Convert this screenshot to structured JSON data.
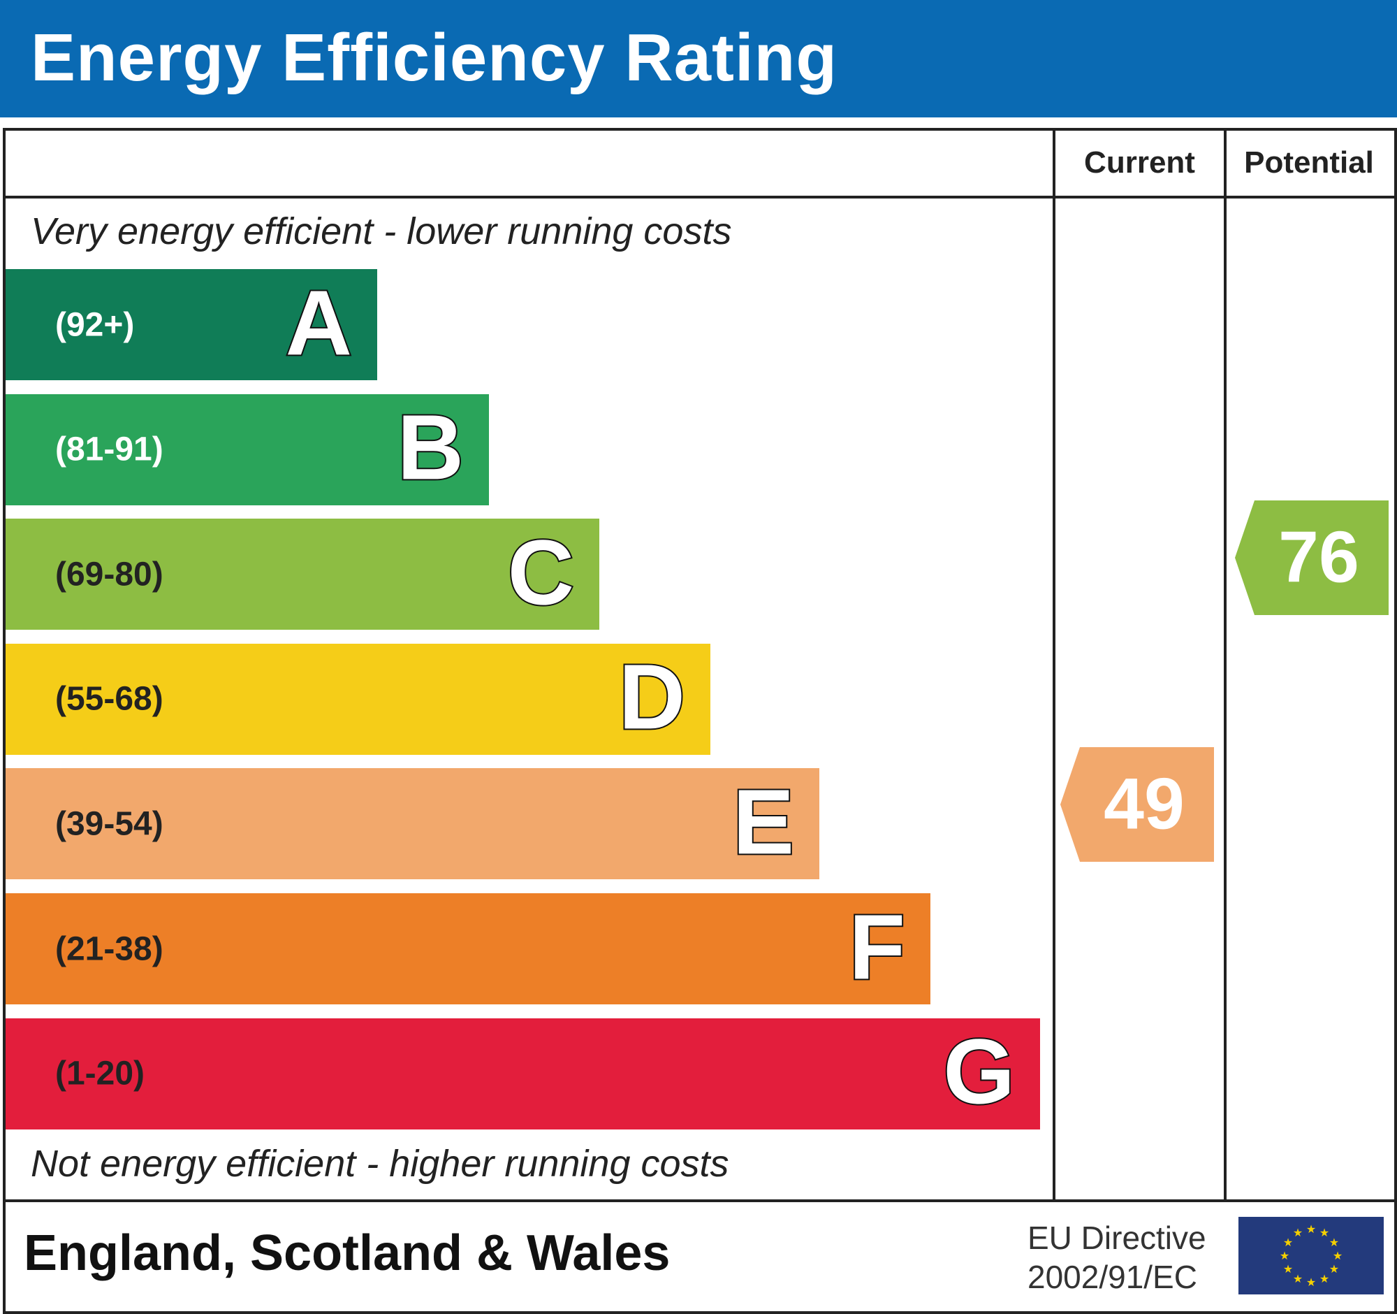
{
  "header": {
    "title": "Energy Efficiency Rating",
    "background_color": "#0a6ab3"
  },
  "columns": {
    "current": "Current",
    "potential": "Potential"
  },
  "notes": {
    "top": "Very energy efficient - lower running costs",
    "bottom": "Not energy efficient - higher running costs"
  },
  "bands": [
    {
      "letter": "A",
      "range": "(92+)",
      "color": "#107d57",
      "text_color": "#ffffff"
    },
    {
      "letter": "B",
      "range": "(81-91)",
      "color": "#2aa45a",
      "text_color": "#ffffff"
    },
    {
      "letter": "C",
      "range": "(69-80)",
      "color": "#8dbd43",
      "text_color": "#222222"
    },
    {
      "letter": "D",
      "range": "(55-68)",
      "color": "#f5cd18",
      "text_color": "#222222"
    },
    {
      "letter": "E",
      "range": "(39-54)",
      "color": "#f2a86c",
      "text_color": "#222222"
    },
    {
      "letter": "F",
      "range": "(21-38)",
      "color": "#ed7f27",
      "text_color": "#222222"
    },
    {
      "letter": "G",
      "range": "(1-20)",
      "color": "#e31e3c",
      "text_color": "#222222"
    }
  ],
  "ratings": {
    "current": {
      "value": "49",
      "band": "E",
      "color": "#f2a86c"
    },
    "potential": {
      "value": "76",
      "band": "C",
      "color": "#8dbd43"
    }
  },
  "footer": {
    "region": "England, Scotland & Wales",
    "directive_line1": "EU Directive",
    "directive_line2": "2002/91/EC",
    "flag_icon": "eu-flag-icon"
  }
}
